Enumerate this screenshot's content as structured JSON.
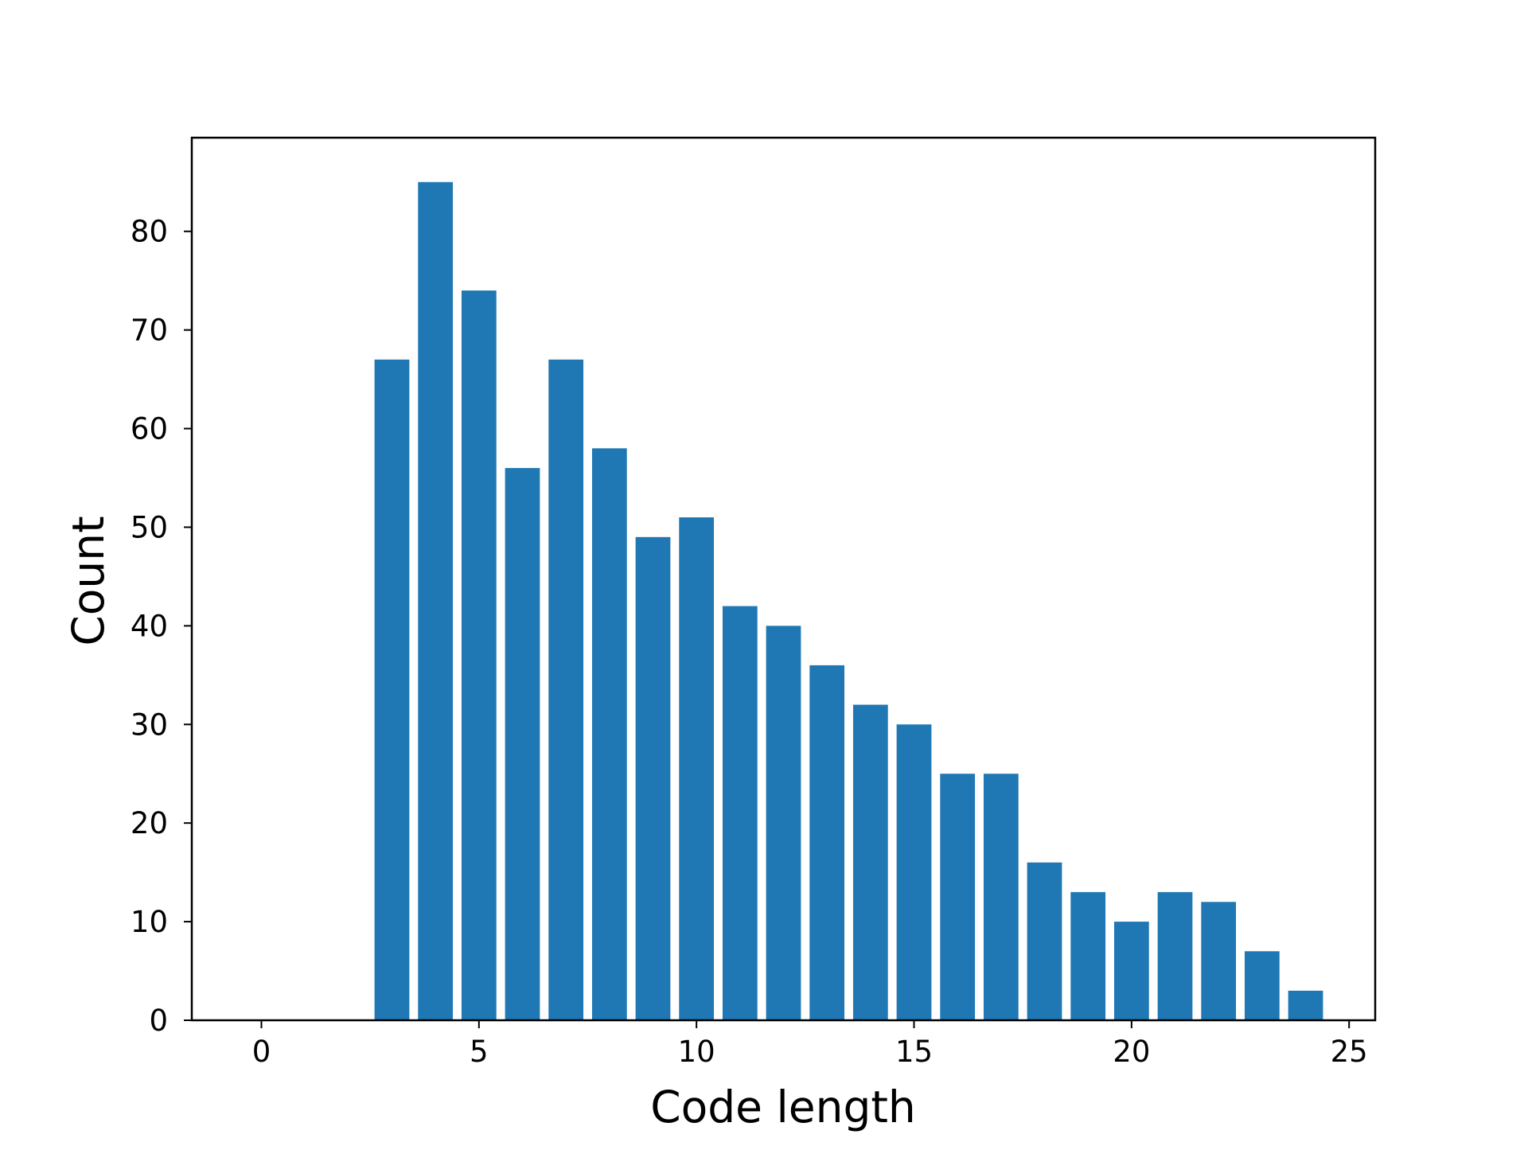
{
  "chart_data": {
    "type": "bar",
    "title": "",
    "xlabel": "Code length",
    "ylabel": "Count",
    "x": [
      3,
      4,
      5,
      6,
      7,
      8,
      9,
      10,
      11,
      12,
      13,
      14,
      15,
      16,
      17,
      18,
      19,
      20,
      21,
      22,
      23,
      24
    ],
    "values": [
      67,
      85,
      74,
      56,
      67,
      58,
      49,
      51,
      42,
      40,
      36,
      32,
      30,
      25,
      25,
      16,
      13,
      10,
      13,
      12,
      7,
      3
    ],
    "xlim": [
      -1.6,
      25.6
    ],
    "ylim": [
      0,
      89.5
    ],
    "xticks": [
      0,
      5,
      10,
      15,
      20,
      25
    ],
    "yticks": [
      0,
      10,
      20,
      30,
      40,
      50,
      60,
      70,
      80
    ],
    "grid": false,
    "legend": "none",
    "bar_color": "#1f77b4"
  }
}
